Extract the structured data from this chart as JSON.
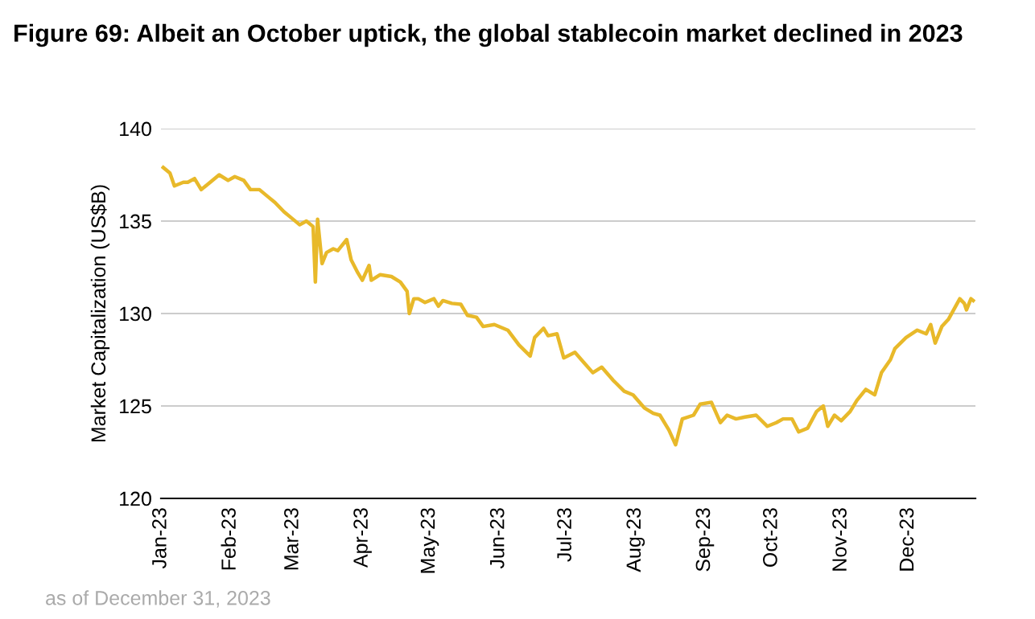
{
  "chart_data": {
    "type": "line",
    "title": "Figure 69: Albeit an October uptick, the global stablecoin market declined in 2023",
    "ylabel": "Market Capitalization (US$B)",
    "annotations": [
      "as of December 31, 2023"
    ],
    "x": [
      "2023-01-02",
      "2023-01-05",
      "2023-01-07",
      "2023-01-11",
      "2023-01-13",
      "2023-01-16",
      "2023-01-19",
      "2023-01-23",
      "2023-01-27",
      "2023-01-31",
      "2023-02-03",
      "2023-02-07",
      "2023-02-10",
      "2023-02-14",
      "2023-02-18",
      "2023-02-21",
      "2023-02-25",
      "2023-02-28",
      "2023-03-04",
      "2023-03-07",
      "2023-03-10",
      "2023-03-11",
      "2023-03-12",
      "2023-03-14",
      "2023-03-16",
      "2023-03-19",
      "2023-03-21",
      "2023-03-25",
      "2023-03-27",
      "2023-03-30",
      "2023-04-01",
      "2023-04-04",
      "2023-04-05",
      "2023-04-09",
      "2023-04-14",
      "2023-04-18",
      "2023-04-21",
      "2023-04-22",
      "2023-04-24",
      "2023-04-26",
      "2023-04-29",
      "2023-05-03",
      "2023-05-05",
      "2023-05-07",
      "2023-05-11",
      "2023-05-15",
      "2023-05-18",
      "2023-05-22",
      "2023-05-25",
      "2023-05-30",
      "2023-06-05",
      "2023-06-10",
      "2023-06-15",
      "2023-06-17",
      "2023-06-21",
      "2023-06-23",
      "2023-06-27",
      "2023-06-30",
      "2023-07-05",
      "2023-07-09",
      "2023-07-13",
      "2023-07-17",
      "2023-07-22",
      "2023-07-27",
      "2023-07-31",
      "2023-08-05",
      "2023-08-09",
      "2023-08-12",
      "2023-08-16",
      "2023-08-19",
      "2023-08-22",
      "2023-08-27",
      "2023-08-30",
      "2023-09-04",
      "2023-09-08",
      "2023-09-11",
      "2023-09-15",
      "2023-09-19",
      "2023-09-24",
      "2023-09-29",
      "2023-10-03",
      "2023-10-06",
      "2023-10-10",
      "2023-10-13",
      "2023-10-17",
      "2023-10-21",
      "2023-10-24",
      "2023-10-26",
      "2023-10-29",
      "2023-11-01",
      "2023-11-05",
      "2023-11-08",
      "2023-11-12",
      "2023-11-16",
      "2023-11-19",
      "2023-11-23",
      "2023-11-25",
      "2023-11-30",
      "2023-12-05",
      "2023-12-09",
      "2023-12-11",
      "2023-12-13",
      "2023-12-16",
      "2023-12-19",
      "2023-12-24",
      "2023-12-26",
      "2023-12-27",
      "2023-12-29",
      "2023-12-30"
    ],
    "series": [
      {
        "color": "#e8b92a",
        "values": [
          137.9,
          137.6,
          136.9,
          137.1,
          137.1,
          137.3,
          136.7,
          137.1,
          137.5,
          137.2,
          137.4,
          137.2,
          136.7,
          136.7,
          136.3,
          136.0,
          135.5,
          135.2,
          134.8,
          135.0,
          134.7,
          131.7,
          135.1,
          132.7,
          133.3,
          133.5,
          133.4,
          134.0,
          132.9,
          132.2,
          131.8,
          132.6,
          131.8,
          132.1,
          132.0,
          131.7,
          131.2,
          130.0,
          130.8,
          130.8,
          130.6,
          130.8,
          130.4,
          130.7,
          130.55,
          130.5,
          129.9,
          129.8,
          129.3,
          129.4,
          129.1,
          128.3,
          127.7,
          128.7,
          129.2,
          128.8,
          128.9,
          127.6,
          127.9,
          127.35,
          126.8,
          127.1,
          126.4,
          125.8,
          125.6,
          124.9,
          124.6,
          124.5,
          123.7,
          122.9,
          124.3,
          124.5,
          125.1,
          125.2,
          124.1,
          124.5,
          124.3,
          124.4,
          124.5,
          123.9,
          124.1,
          124.3,
          124.3,
          123.6,
          123.8,
          124.7,
          125.0,
          123.9,
          124.5,
          124.2,
          124.7,
          125.3,
          125.9,
          125.6,
          126.8,
          127.5,
          128.1,
          128.7,
          129.1,
          128.9,
          129.4,
          128.4,
          129.3,
          129.7,
          130.8,
          130.55,
          130.2,
          130.8,
          130.7
        ]
      }
    ],
    "xlim": [
      "2023-01-01",
      "2023-12-31"
    ],
    "xticks": [
      {
        "value": "2023-01-01",
        "label": "Jan-23"
      },
      {
        "value": "2023-02-01",
        "label": "Feb-23"
      },
      {
        "value": "2023-03-01",
        "label": "Mar-23"
      },
      {
        "value": "2023-04-01",
        "label": "Apr-23"
      },
      {
        "value": "2023-05-01",
        "label": "May-23"
      },
      {
        "value": "2023-06-01",
        "label": "Jun-23"
      },
      {
        "value": "2023-07-01",
        "label": "Jul-23"
      },
      {
        "value": "2023-08-01",
        "label": "Aug-23"
      },
      {
        "value": "2023-09-01",
        "label": "Sep-23"
      },
      {
        "value": "2023-10-01",
        "label": "Oct-23"
      },
      {
        "value": "2023-11-01",
        "label": "Nov-23"
      },
      {
        "value": "2023-12-01",
        "label": "Dec-23"
      }
    ],
    "ylim": [
      120,
      140
    ],
    "yticks": [
      120,
      125,
      130,
      135,
      140
    ],
    "grid": "y",
    "legend": false,
    "marker": "none",
    "line_style": "solid"
  }
}
